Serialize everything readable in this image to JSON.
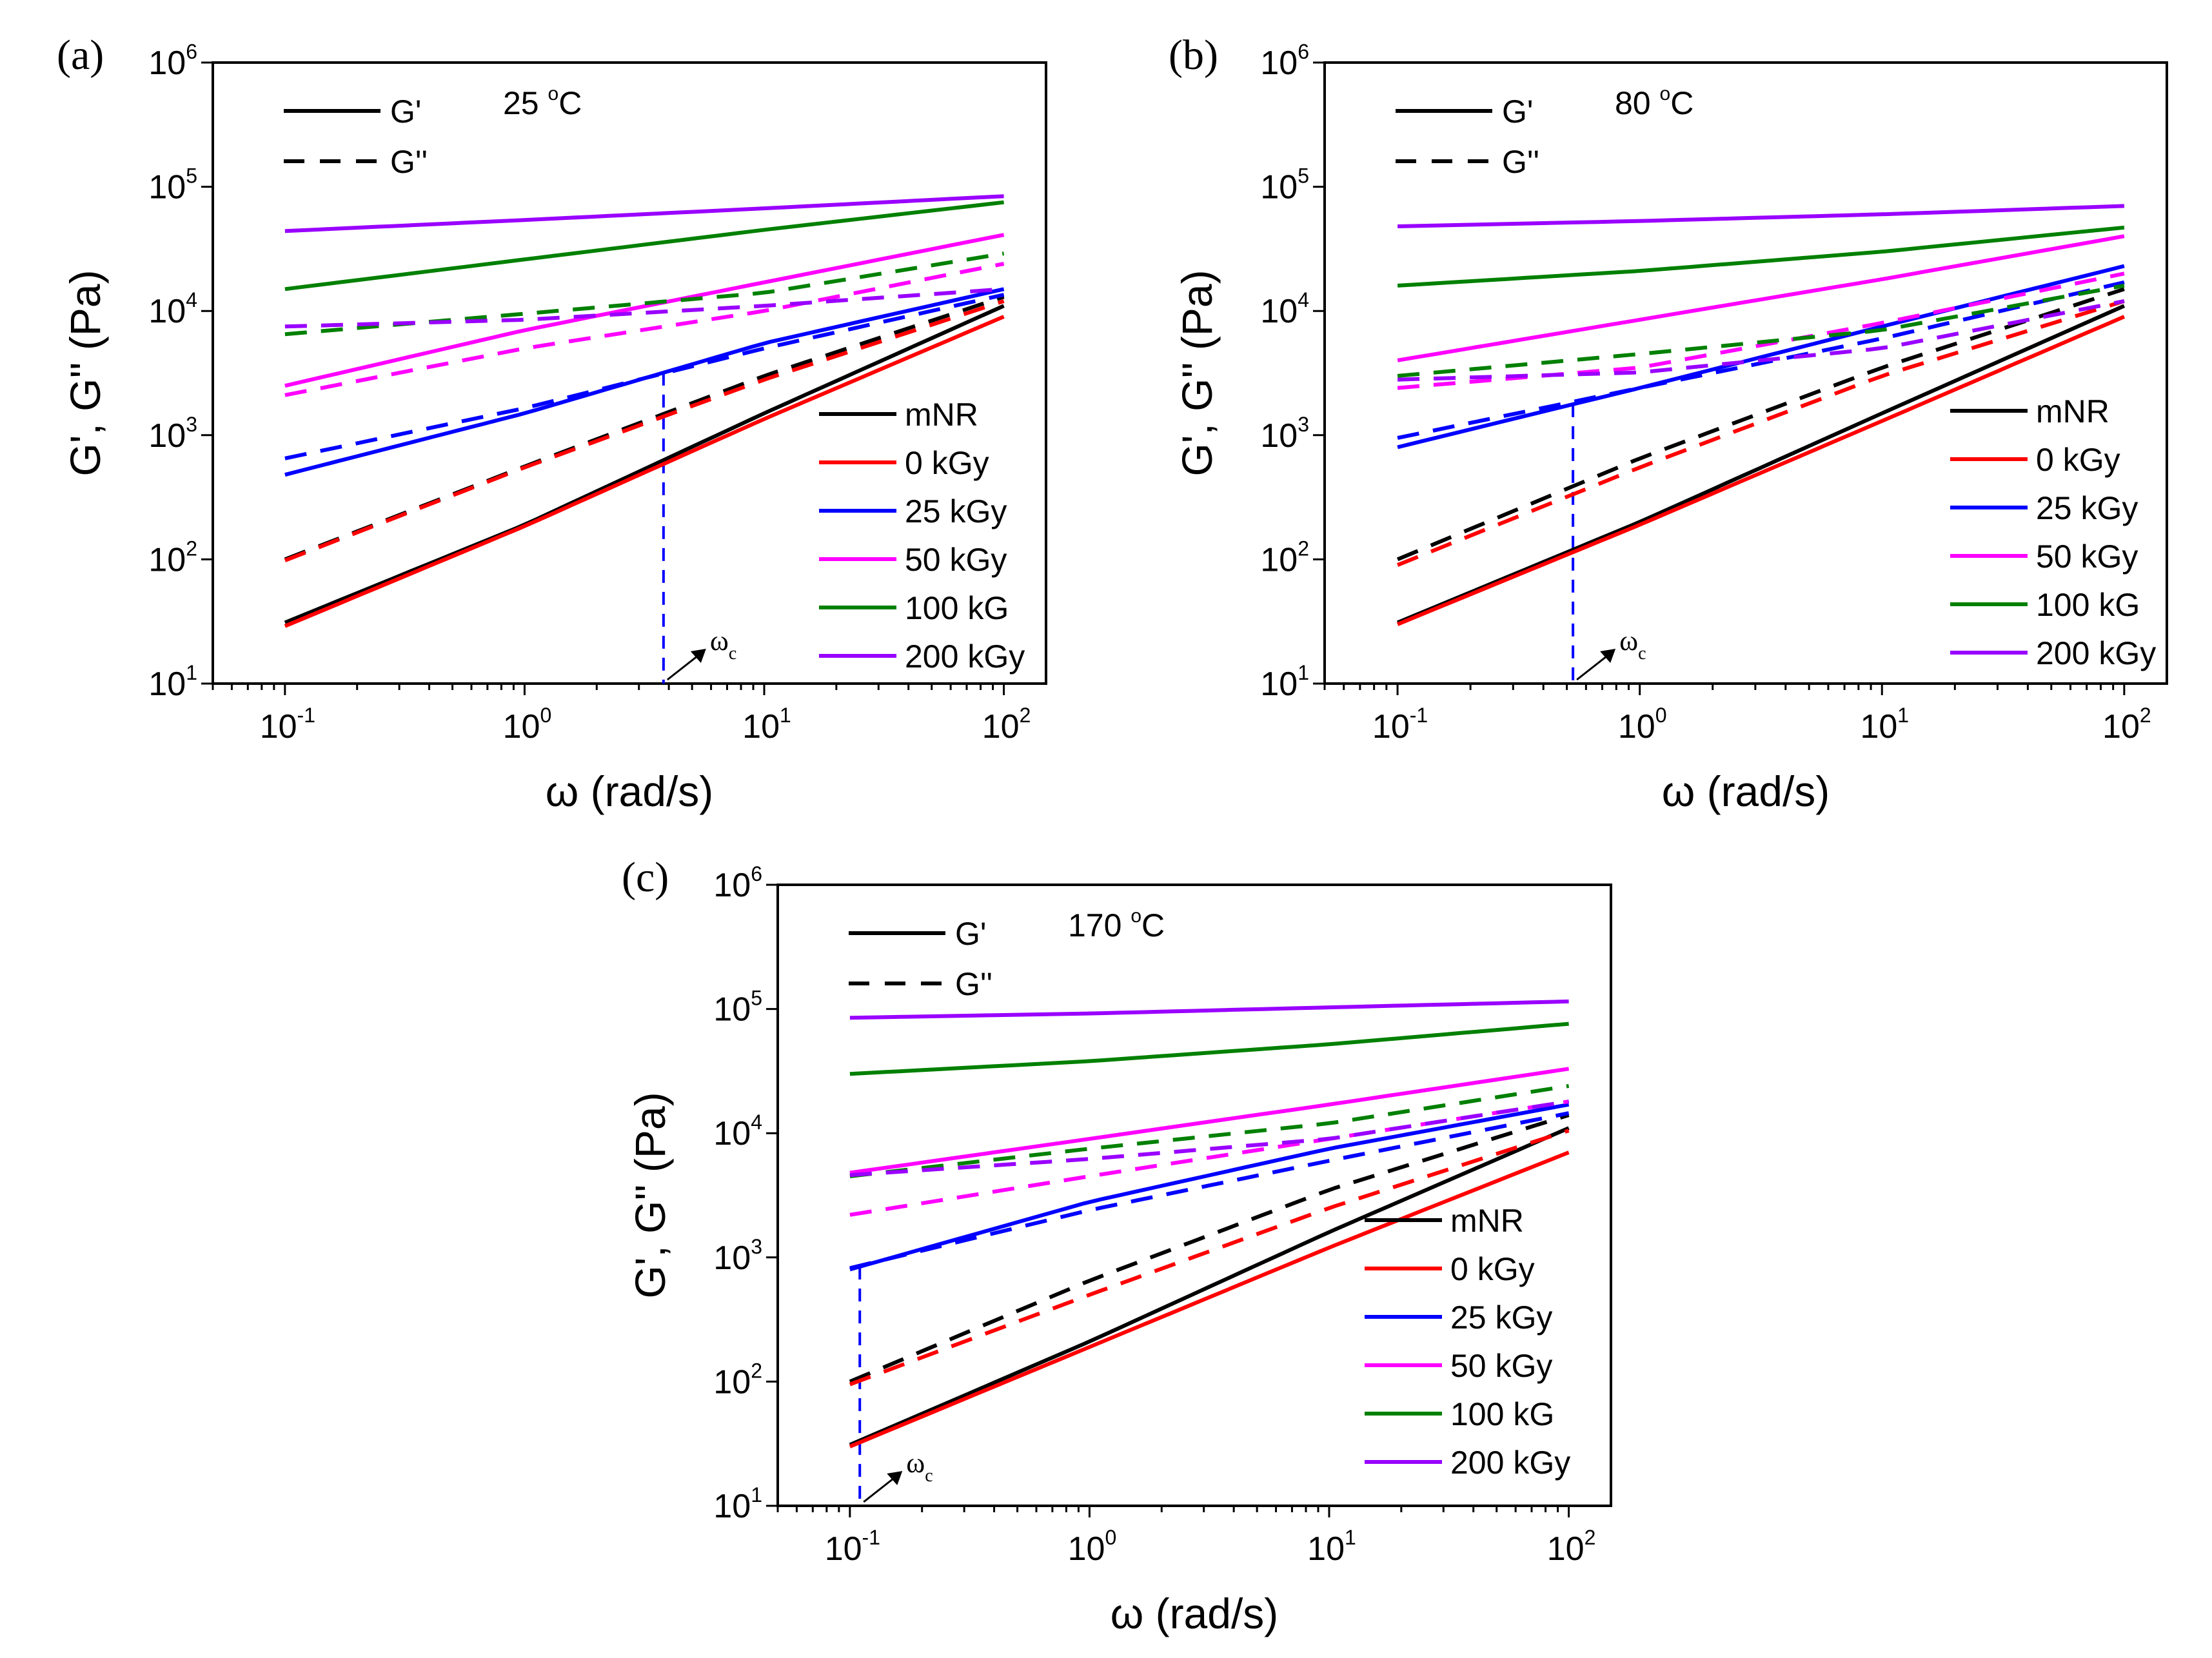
{
  "series_styles": [
    {
      "key": "mNR",
      "label": "mNR",
      "color": "#000000"
    },
    {
      "key": "0kGy",
      "label": "0 kGy",
      "color": "#ff0000"
    },
    {
      "key": "25kGy",
      "label": "25 kGy",
      "color": "#0000ff"
    },
    {
      "key": "50kGy",
      "label": "50 kGy",
      "color": "#ff00ff"
    },
    {
      "key": "100kGy",
      "label": "100 kG",
      "color": "#008000"
    },
    {
      "key": "200kGy",
      "label": "200 kGy",
      "color": "#9900ff"
    }
  ],
  "line_legend": [
    {
      "label": "G'",
      "dash": "solid"
    },
    {
      "label": "G''",
      "dash": "dashed"
    }
  ],
  "chart_data": [
    {
      "type": "line",
      "panel": "(a)",
      "temperature": "25",
      "temperature_unit": "C",
      "xlabel": "ω (rad/s)",
      "ylabel": "G', G'' (Pa)",
      "xscale": "log",
      "yscale": "log",
      "xlim": [
        0.05,
        150
      ],
      "ylim": [
        10,
        1000000
      ],
      "x_ticks": [
        0.1,
        1,
        10,
        100
      ],
      "x_tick_labels": [
        "10-1",
        "10^0",
        "10^1",
        "10^2"
      ],
      "y_tick_labels": [
        "10^1",
        "10^2",
        "10^3",
        "10^4",
        "10^5",
        "10^6"
      ],
      "crossover": {
        "label": "ωc",
        "x": 3.8
      },
      "series": [
        {
          "name": "mNR",
          "modulus": "G'",
          "x": [
            0.1,
            1,
            10,
            100
          ],
          "values": [
            31,
            190,
            1500,
            11000
          ]
        },
        {
          "name": "mNR",
          "modulus": "G''",
          "x": [
            0.1,
            1,
            10,
            100
          ],
          "values": [
            100,
            560,
            3000,
            13000
          ]
        },
        {
          "name": "0 kGy",
          "modulus": "G'",
          "x": [
            0.1,
            1,
            10,
            100
          ],
          "values": [
            29,
            185,
            1350,
            9000
          ]
        },
        {
          "name": "0 kGy",
          "modulus": "G''",
          "x": [
            0.1,
            1,
            10,
            100
          ],
          "values": [
            98,
            550,
            2800,
            12000
          ]
        },
        {
          "name": "25 kGy",
          "modulus": "G'",
          "x": [
            0.1,
            1,
            10,
            100
          ],
          "values": [
            480,
            1500,
            5500,
            15000
          ]
        },
        {
          "name": "25 kGy",
          "modulus": "G''",
          "x": [
            0.1,
            1,
            10,
            100
          ],
          "values": [
            650,
            1650,
            5000,
            13500
          ]
        },
        {
          "name": "50 kGy",
          "modulus": "G'",
          "x": [
            0.1,
            1,
            10,
            100
          ],
          "values": [
            2500,
            7000,
            17000,
            41000
          ]
        },
        {
          "name": "50 kGy",
          "modulus": "G''",
          "x": [
            0.1,
            1,
            10,
            100
          ],
          "values": [
            2100,
            5000,
            10000,
            24000
          ]
        },
        {
          "name": "100 kG",
          "modulus": "G'",
          "x": [
            0.1,
            1,
            10,
            100
          ],
          "values": [
            15000,
            26000,
            45000,
            75000
          ]
        },
        {
          "name": "100 kG",
          "modulus": "G''",
          "x": [
            0.1,
            1,
            10,
            100
          ],
          "values": [
            6500,
            9500,
            14000,
            29000
          ]
        },
        {
          "name": "200 kGy",
          "modulus": "G'",
          "x": [
            0.1,
            1,
            10,
            100
          ],
          "values": [
            44000,
            54000,
            67000,
            84000
          ]
        },
        {
          "name": "200 kGy",
          "modulus": "G''",
          "x": [
            0.1,
            1,
            10,
            100
          ],
          "values": [
            7500,
            8500,
            11000,
            15000
          ]
        }
      ]
    },
    {
      "type": "line",
      "panel": "(b)",
      "temperature": "80",
      "temperature_unit": "C",
      "xlabel": "ω (rad/s)",
      "ylabel": "G', G'' (Pa)",
      "xscale": "log",
      "yscale": "log",
      "xlim": [
        0.05,
        150
      ],
      "ylim": [
        10,
        1000000
      ],
      "x_ticks": [
        0.1,
        1,
        10,
        100
      ],
      "x_tick_labels": [
        "10-1",
        "10^0",
        "10^1",
        "10^2"
      ],
      "y_tick_labels": [
        "10^1",
        "10^2",
        "10^3",
        "10^4",
        "10^5",
        "10^6"
      ],
      "crossover": {
        "label": "ωc",
        "x": 0.53
      },
      "series": [
        {
          "name": "mNR",
          "modulus": "G'",
          "x": [
            0.1,
            1,
            10,
            100
          ],
          "values": [
            31,
            200,
            1500,
            11000
          ]
        },
        {
          "name": "mNR",
          "modulus": "G''",
          "x": [
            0.1,
            1,
            10,
            100
          ],
          "values": [
            100,
            650,
            3500,
            15000
          ]
        },
        {
          "name": "0 kGy",
          "modulus": "G'",
          "x": [
            0.1,
            1,
            10,
            100
          ],
          "values": [
            30,
            190,
            1300,
            9000
          ]
        },
        {
          "name": "0 kGy",
          "modulus": "G''",
          "x": [
            0.1,
            1,
            10,
            100
          ],
          "values": [
            90,
            550,
            3000,
            12000
          ]
        },
        {
          "name": "25 kGy",
          "modulus": "G'",
          "x": [
            0.1,
            1,
            10,
            100
          ],
          "values": [
            800,
            2400,
            7500,
            23000
          ]
        },
        {
          "name": "25 kGy",
          "modulus": "G''",
          "x": [
            0.1,
            1,
            10,
            100
          ],
          "values": [
            950,
            2400,
            6000,
            17000
          ]
        },
        {
          "name": "50 kGy",
          "modulus": "G'",
          "x": [
            0.1,
            1,
            10,
            100
          ],
          "values": [
            4000,
            8500,
            18000,
            40000
          ]
        },
        {
          "name": "50 kGy",
          "modulus": "G''",
          "x": [
            0.1,
            1,
            10,
            100
          ],
          "values": [
            2400,
            3500,
            8000,
            20000
          ]
        },
        {
          "name": "100 kG",
          "modulus": "G'",
          "x": [
            0.1,
            1,
            10,
            100
          ],
          "values": [
            16000,
            21000,
            30000,
            47000
          ]
        },
        {
          "name": "100 kG",
          "modulus": "G''",
          "x": [
            0.1,
            1,
            10,
            100
          ],
          "values": [
            3000,
            4500,
            7000,
            16000
          ]
        },
        {
          "name": "200 kGy",
          "modulus": "G'",
          "x": [
            0.1,
            1,
            10,
            100
          ],
          "values": [
            48000,
            53000,
            60000,
            70000
          ]
        },
        {
          "name": "200 kGy",
          "modulus": "G''",
          "x": [
            0.1,
            1,
            10,
            100
          ],
          "values": [
            2800,
            3200,
            5000,
            12000
          ]
        }
      ]
    },
    {
      "type": "line",
      "panel": "(c)",
      "temperature": "170",
      "temperature_unit": "C",
      "xlabel": "ω (rad/s)",
      "ylabel": "G', G'' (Pa)",
      "xscale": "log",
      "yscale": "log",
      "xlim": [
        0.05,
        150
      ],
      "ylim": [
        10,
        1000000
      ],
      "x_ticks": [
        0.1,
        1,
        10,
        100
      ],
      "x_tick_labels": [
        "10-1",
        "10^0",
        "10^1",
        "10^2"
      ],
      "y_tick_labels": [
        "10^1",
        "10^2",
        "10^3",
        "10^4",
        "10^5",
        "10^6"
      ],
      "crossover": {
        "label": "ωc",
        "x": 0.11
      },
      "series": [
        {
          "name": "mNR",
          "modulus": "G'",
          "x": [
            0.1,
            1,
            10,
            100
          ],
          "values": [
            31,
            210,
            1600,
            11000
          ]
        },
        {
          "name": "mNR",
          "modulus": "G''",
          "x": [
            0.1,
            1,
            10,
            100
          ],
          "values": [
            100,
            650,
            3500,
            14000
          ]
        },
        {
          "name": "0 kGy",
          "modulus": "G'",
          "x": [
            0.1,
            1,
            10,
            100
          ],
          "values": [
            30,
            190,
            1200,
            7000
          ]
        },
        {
          "name": "0 kGy",
          "modulus": "G''",
          "x": [
            0.1,
            1,
            10,
            100
          ],
          "values": [
            95,
            500,
            2500,
            10500
          ]
        },
        {
          "name": "25 kGy",
          "modulus": "G'",
          "x": [
            0.1,
            1,
            10,
            100
          ],
          "values": [
            800,
            2800,
            7500,
            17000
          ]
        },
        {
          "name": "25 kGy",
          "modulus": "G''",
          "x": [
            0.1,
            1,
            10,
            100
          ],
          "values": [
            820,
            2400,
            6000,
            14500
          ]
        },
        {
          "name": "50 kGy",
          "modulus": "G'",
          "x": [
            0.1,
            1,
            10,
            100
          ],
          "values": [
            4800,
            9000,
            17000,
            33000
          ]
        },
        {
          "name": "50 kGy",
          "modulus": "G''",
          "x": [
            0.1,
            1,
            10,
            100
          ],
          "values": [
            2200,
            4500,
            9000,
            18000
          ]
        },
        {
          "name": "100 kG",
          "modulus": "G'",
          "x": [
            0.1,
            1,
            10,
            100
          ],
          "values": [
            30000,
            38000,
            52000,
            76000
          ]
        },
        {
          "name": "100 kG",
          "modulus": "G''",
          "x": [
            0.1,
            1,
            10,
            100
          ],
          "values": [
            4500,
            7500,
            12000,
            24000
          ]
        },
        {
          "name": "200 kGy",
          "modulus": "G'",
          "x": [
            0.1,
            1,
            10,
            100
          ],
          "values": [
            85000,
            92000,
            103000,
            115000
          ]
        },
        {
          "name": "200 kGy",
          "modulus": "G''",
          "x": [
            0.1,
            1,
            10,
            100
          ],
          "values": [
            4600,
            6200,
            9000,
            18000
          ]
        }
      ]
    }
  ]
}
